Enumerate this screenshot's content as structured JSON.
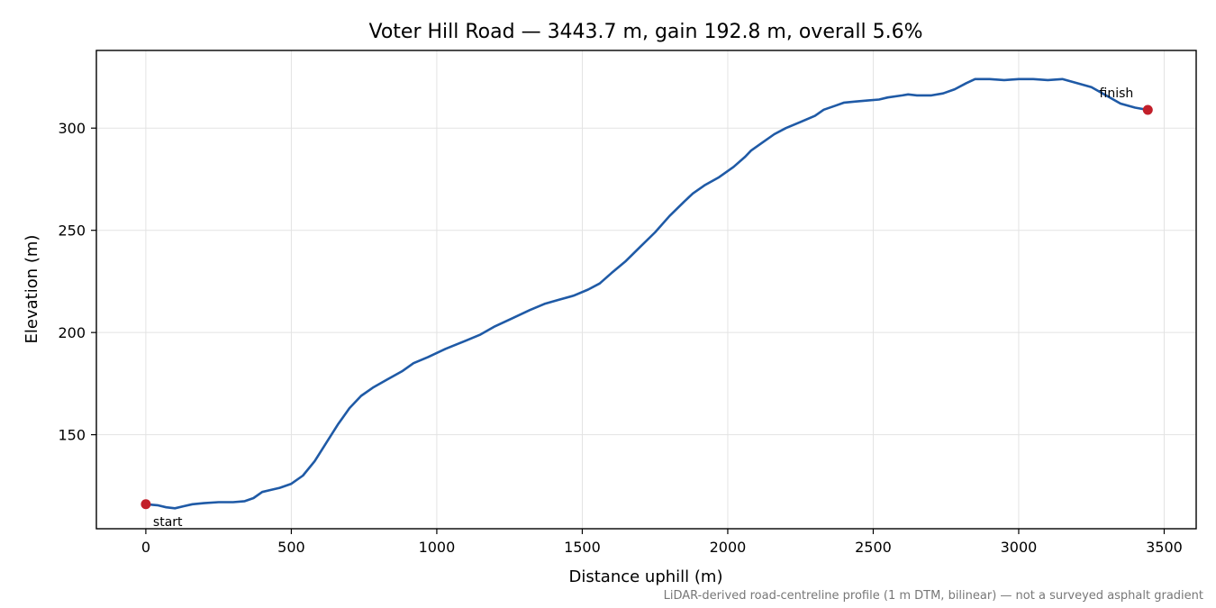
{
  "chart_data": {
    "type": "line",
    "title": "Voter Hill Road — 3443.7 m, gain 192.8 m, overall 5.6%",
    "xlabel": "Distance uphill (m)",
    "ylabel": "Elevation (m)",
    "xlim": [
      -170,
      3610
    ],
    "ylim": [
      104,
      338
    ],
    "xticks": [
      0,
      500,
      1000,
      1500,
      2000,
      2500,
      3000,
      3500
    ],
    "yticks": [
      150,
      200,
      250,
      300
    ],
    "grid": true,
    "line_color": "#1f5aa6",
    "marker_color": "#c21f2a",
    "series": [
      {
        "x": [
          0,
          40,
          70,
          100,
          130,
          160,
          200,
          250,
          300,
          340,
          370,
          400,
          430,
          460,
          500,
          540,
          580,
          620,
          660,
          700,
          740,
          780,
          830,
          880,
          920,
          970,
          1030,
          1100,
          1150,
          1200,
          1260,
          1320,
          1370,
          1420,
          1470,
          1520,
          1560,
          1600,
          1650,
          1700,
          1750,
          1800,
          1850,
          1880,
          1920,
          1970,
          2020,
          2060,
          2080,
          2120,
          2160,
          2200,
          2250,
          2300,
          2330,
          2370,
          2400,
          2440,
          2480,
          2520,
          2550,
          2600,
          2620,
          2650,
          2700,
          2740,
          2780,
          2820,
          2850,
          2900,
          2950,
          3000,
          3050,
          3100,
          3150,
          3200,
          3250,
          3300,
          3350,
          3400,
          3443.7
        ],
        "y": [
          116,
          115.5,
          114.5,
          114,
          115,
          116,
          116.5,
          117,
          117,
          117.5,
          119,
          122,
          123,
          124,
          126,
          130,
          137,
          146,
          155,
          163,
          169,
          173,
          177,
          181,
          185,
          188,
          192,
          196,
          199,
          203,
          207,
          211,
          214,
          216,
          218,
          221,
          224,
          229,
          235,
          242,
          249,
          257,
          264,
          268,
          272,
          276,
          281,
          286,
          289,
          293,
          297,
          300,
          303,
          306,
          309,
          311,
          312.5,
          313,
          313.5,
          314,
          315,
          316,
          316.5,
          316,
          316,
          317,
          319,
          322,
          324,
          324,
          323.5,
          324,
          324,
          323.5,
          324,
          322,
          320,
          316,
          312,
          310,
          308.9
        ]
      }
    ],
    "annotations": [
      {
        "text": "start",
        "x": 0,
        "y": 116
      },
      {
        "text": "finish",
        "x": 3443.7,
        "y": 308.9
      }
    ],
    "footnote": "LiDAR-derived road-centreline profile (1 m DTM, bilinear) — not a surveyed asphalt gradient"
  }
}
